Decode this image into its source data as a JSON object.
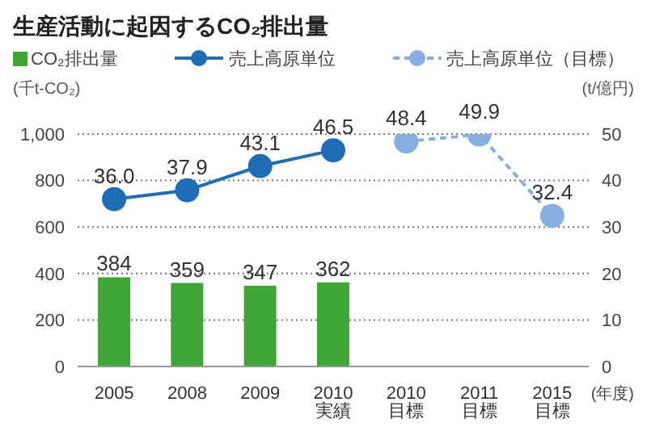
{
  "chart_data": {
    "type": "bar",
    "title": "生産活動に起因するCO₂排出量",
    "categories": [
      "2005",
      "2008",
      "2009",
      "2010\n実績",
      "2010\n目標",
      "2011\n目標",
      "2015\n目標"
    ],
    "series": [
      {
        "name": "CO₂排出量",
        "color": "#3fa535",
        "values": [
          384,
          359,
          347,
          362,
          null,
          null,
          null
        ],
        "value_labels": [
          "384",
          "359",
          "347",
          "362",
          null,
          null,
          null
        ]
      },
      {
        "name": "売上高原単位",
        "type": "line",
        "axis": "y2",
        "color": "#1f6db5",
        "line_style": "solid",
        "values": [
          36.0,
          37.9,
          43.1,
          46.5,
          null,
          null,
          null
        ],
        "value_labels": [
          "36.0",
          "37.9",
          "43.1",
          "46.5",
          null,
          null,
          null
        ]
      },
      {
        "name": "売上高原単位（目標）",
        "type": "line",
        "axis": "y2",
        "color": "#86aee0",
        "line_style": "dashed",
        "values": [
          null,
          null,
          null,
          null,
          48.4,
          49.9,
          32.4
        ],
        "value_labels": [
          null,
          null,
          null,
          null,
          "48.4",
          "49.9",
          "32.4"
        ]
      }
    ],
    "ylabel": "(千t-CO₂)",
    "y2label": "(t/億円)",
    "xlabel": "(年度)",
    "ylim": [
      0,
      1000
    ],
    "yticks": [
      0,
      200,
      400,
      600,
      800,
      {
        "value": 1000,
        "label": "1,000"
      }
    ],
    "y2lim": [
      0,
      50
    ],
    "y2ticks": [
      0,
      10,
      20,
      30,
      40,
      50
    ],
    "grid": "y",
    "legend": "top",
    "marker": "circle"
  }
}
